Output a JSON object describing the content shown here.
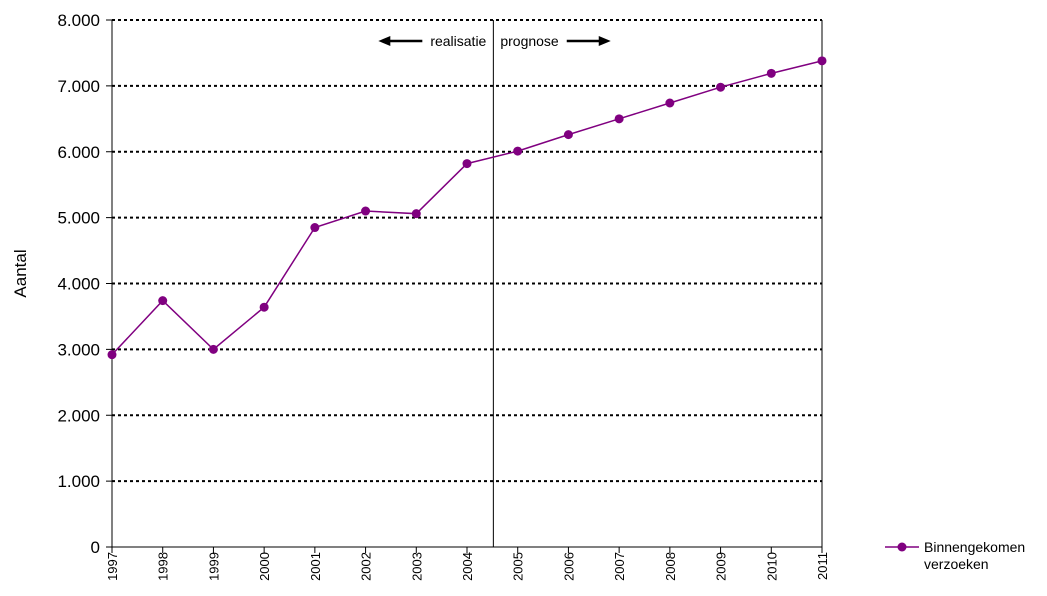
{
  "chart_data": {
    "type": "line",
    "title": "",
    "xlabel": "",
    "ylabel": "Aantal",
    "categories": [
      "1997",
      "1998",
      "1999",
      "2000",
      "2001",
      "2002",
      "2003",
      "2004",
      "2005",
      "2006",
      "2007",
      "2008",
      "2009",
      "2010",
      "2011"
    ],
    "y_ticks": [
      "0",
      "1.000",
      "2.000",
      "3.000",
      "4.000",
      "5.000",
      "6.000",
      "7.000",
      "8.000"
    ],
    "ylim": [
      0,
      8000
    ],
    "series": [
      {
        "name": "Binnengekomen verzoeken",
        "name_lines": [
          "Binnengekomen",
          "verzoeken"
        ],
        "color": "#800080",
        "values": [
          2920,
          3740,
          3000,
          3640,
          4850,
          5100,
          5060,
          5820,
          6010,
          6260,
          6500,
          6740,
          6980,
          7190,
          7380
        ]
      }
    ],
    "divider_after_category": "2004",
    "annotations": {
      "left": "realisatie",
      "right": "prognose"
    },
    "gridlines": "horizontal dotted",
    "legend_position": "right-bottom"
  }
}
